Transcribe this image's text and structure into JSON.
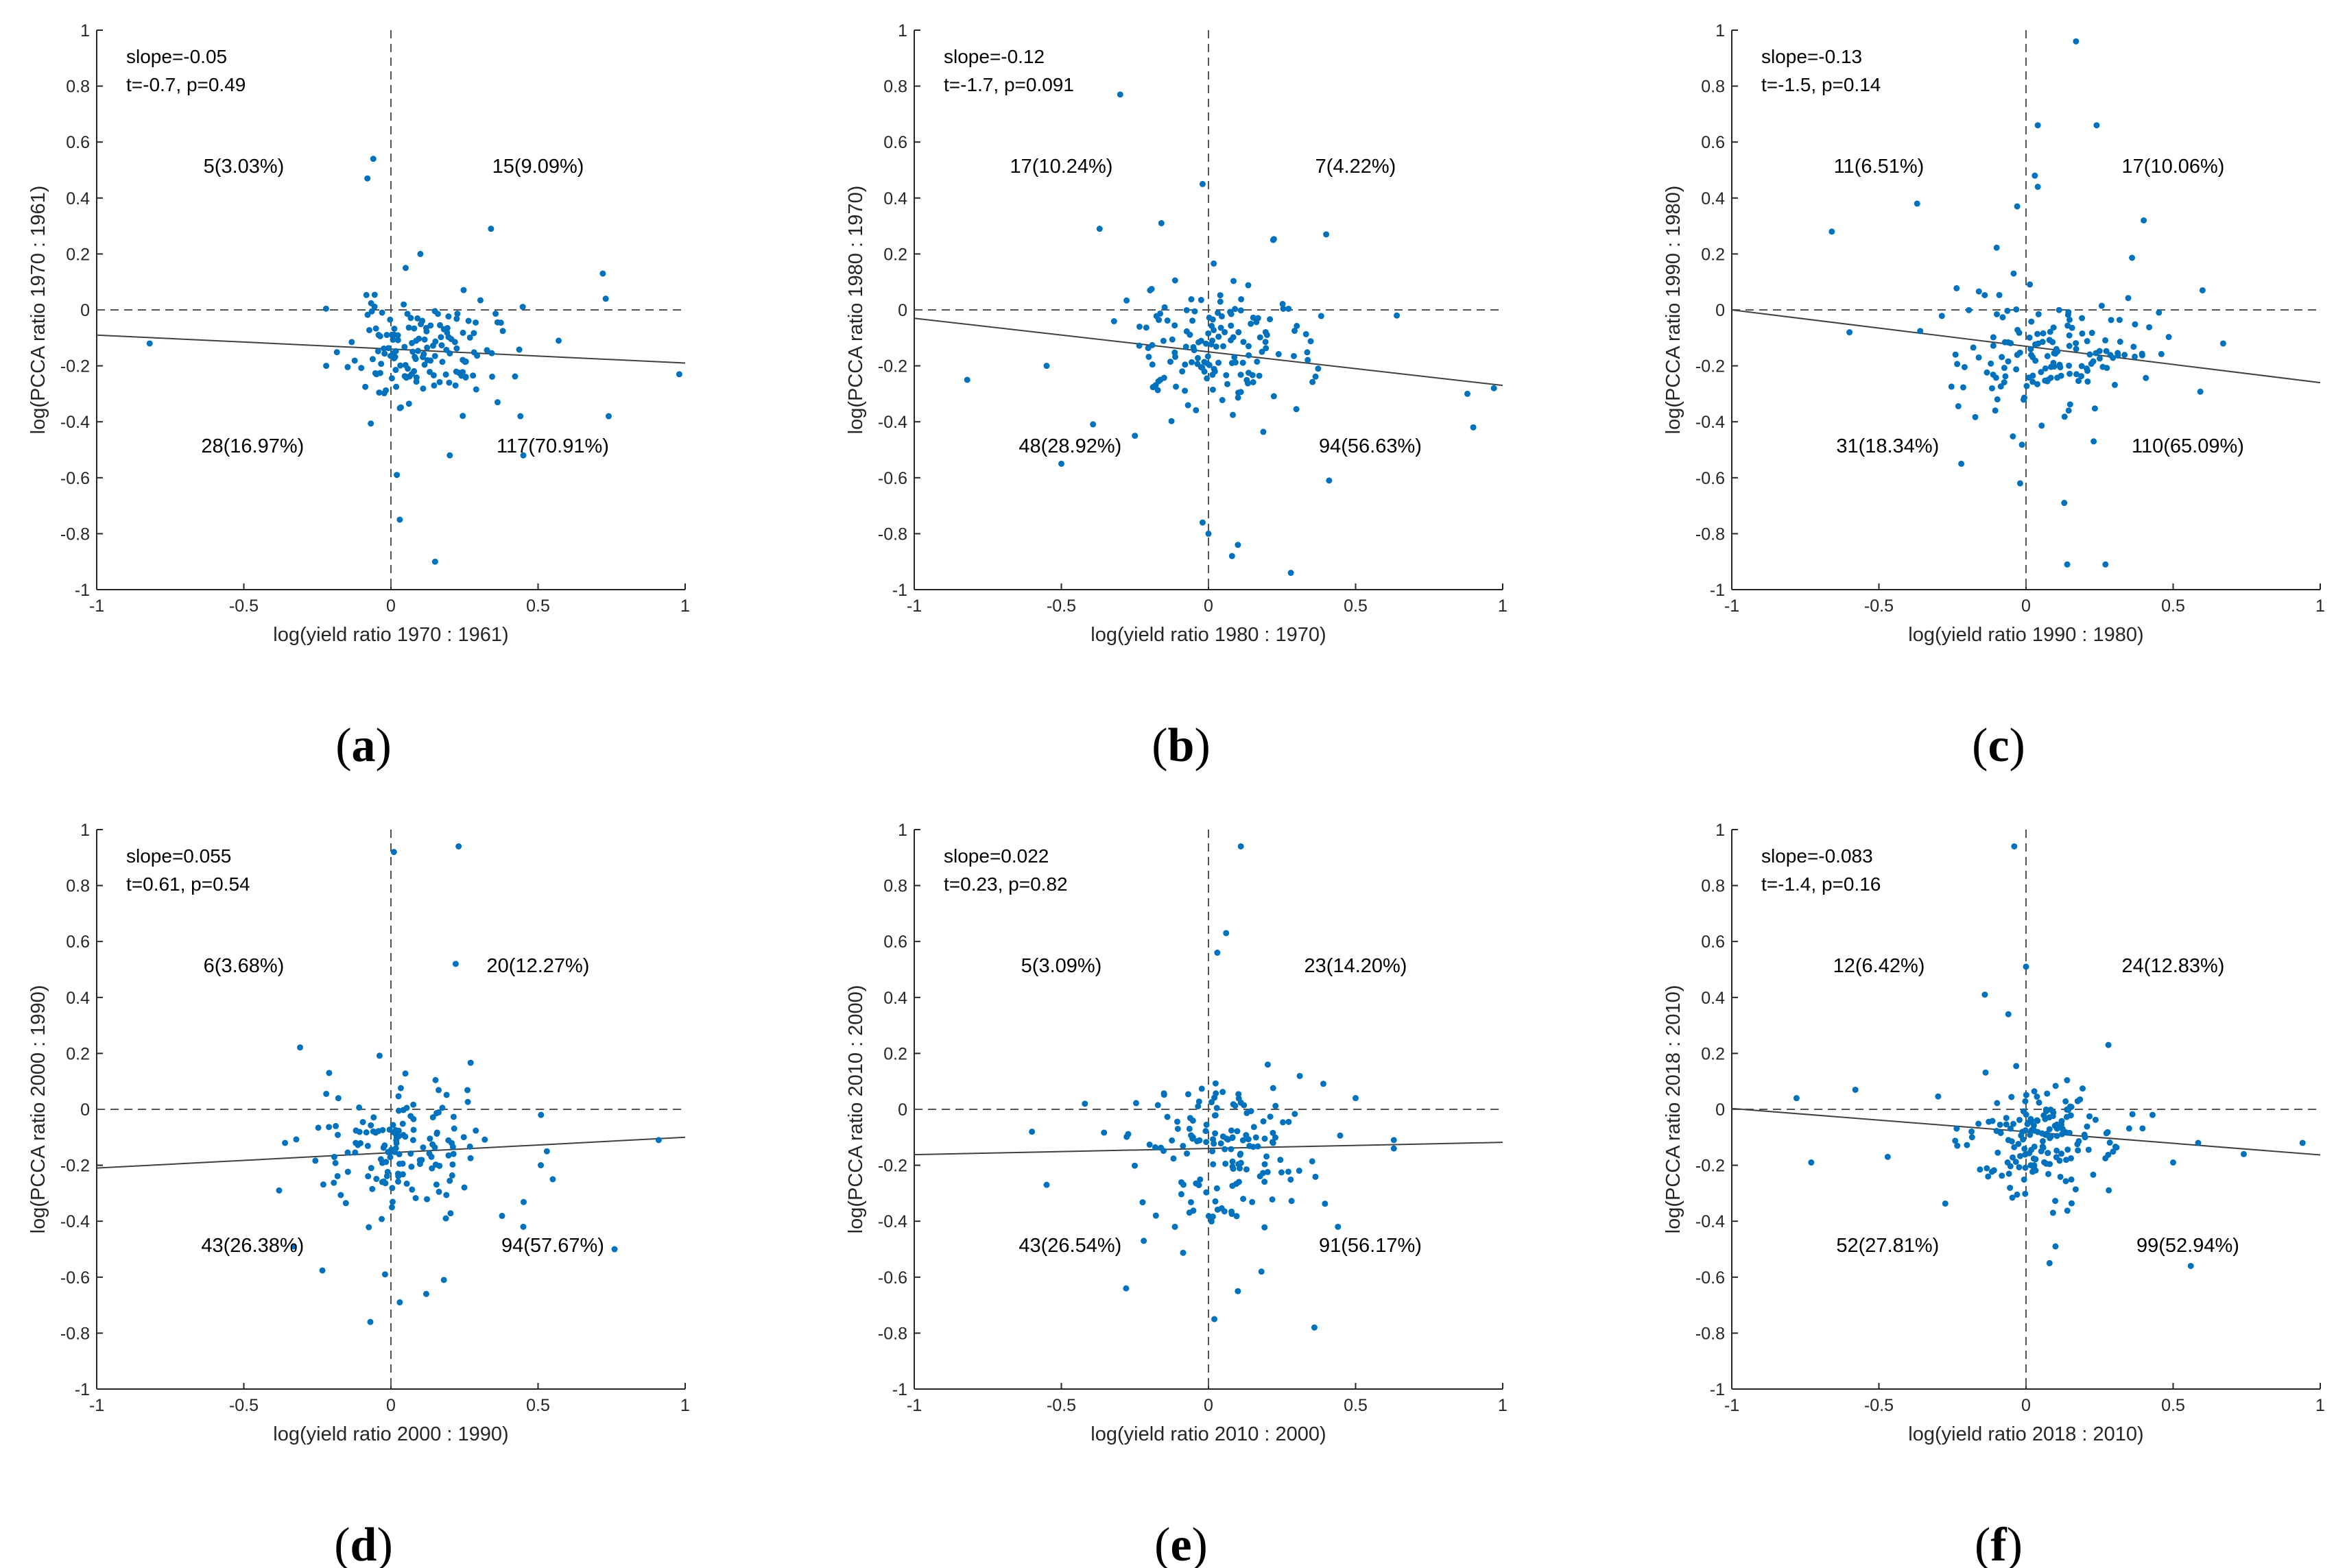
{
  "colors": {
    "points": "#0072bd",
    "axis": "#262626",
    "fit": "#404040",
    "ref": "#555555"
  },
  "chart_data": [
    {
      "type": "scatter",
      "panel_label": "a",
      "xlabel": "log(yield ratio 1970 : 1961)",
      "ylabel": "log(PCCA ratio 1970 : 1961)",
      "xlim": [
        -1,
        1
      ],
      "ylim": [
        -1,
        1
      ],
      "x_ticks": [
        "-1",
        "-0.5",
        "0",
        "0.5",
        "1"
      ],
      "y_ticks": [
        "-1",
        "-0.8",
        "-0.6",
        "-0.4",
        "-0.2",
        "0",
        "0.2",
        "0.4",
        "0.6",
        "0.8",
        "1"
      ],
      "stats": [
        "slope=-0.05",
        "t=-0.7, p=0.49"
      ],
      "fit": {
        "slope": -0.05,
        "intercept": -0.14
      },
      "quadrant_labels": {
        "upper_left": "5(3.03%)",
        "upper_right": "15(9.09%)",
        "lower_left": "28(16.97%)",
        "lower_right": "117(70.91%)"
      },
      "outliers": [
        [
          -0.82,
          -0.12
        ],
        [
          -0.08,
          0.47
        ],
        [
          -0.06,
          0.54
        ],
        [
          0.02,
          -0.59
        ],
        [
          0.03,
          -0.75
        ],
        [
          0.15,
          -0.9
        ],
        [
          0.34,
          0.29
        ],
        [
          0.44,
          -0.38
        ],
        [
          0.57,
          -0.11
        ],
        [
          0.72,
          0.13
        ],
        [
          0.73,
          0.04
        ],
        [
          0.74,
          -0.38
        ],
        [
          0.98,
          -0.23
        ],
        [
          0.2,
          -0.52
        ],
        [
          -0.22,
          -0.2
        ],
        [
          0.05,
          0.15
        ],
        [
          0.1,
          0.2
        ],
        [
          0.45,
          -0.52
        ]
      ],
      "cluster": {
        "n": 147,
        "cx": 0.1,
        "cy": -0.15,
        "sx": 0.12,
        "sy": 0.09,
        "seed": 11
      }
    },
    {
      "type": "scatter",
      "panel_label": "b",
      "xlabel": "log(yield ratio 1980 : 1970)",
      "ylabel": "log(PCCA ratio 1980 : 1970)",
      "xlim": [
        -1,
        1
      ],
      "ylim": [
        -1,
        1
      ],
      "x_ticks": [
        "-1",
        "-0.5",
        "0",
        "0.5",
        "1"
      ],
      "y_ticks": [
        "-1",
        "-0.8",
        "-0.6",
        "-0.4",
        "-0.2",
        "0",
        "0.2",
        "0.4",
        "0.6",
        "0.8",
        "1"
      ],
      "stats": [
        "slope=-0.12",
        "t=-1.7, p=0.091"
      ],
      "fit": {
        "slope": -0.12,
        "intercept": -0.15
      },
      "quadrant_labels": {
        "upper_left": "17(10.24%)",
        "upper_right": "7(4.22%)",
        "lower_left": "48(28.92%)",
        "lower_right": "94(56.63%)"
      },
      "outliers": [
        [
          -0.82,
          -0.25
        ],
        [
          -0.55,
          -0.2
        ],
        [
          -0.5,
          -0.55
        ],
        [
          -0.37,
          0.29
        ],
        [
          -0.3,
          0.77
        ],
        [
          -0.16,
          0.31
        ],
        [
          -0.02,
          0.45
        ],
        [
          -0.02,
          -0.76
        ],
        [
          0.0,
          -0.8
        ],
        [
          0.08,
          -0.88
        ],
        [
          0.1,
          -0.84
        ],
        [
          0.28,
          -0.94
        ],
        [
          0.4,
          0.27
        ],
        [
          0.41,
          -0.61
        ],
        [
          0.64,
          -0.02
        ],
        [
          0.88,
          -0.3
        ],
        [
          0.9,
          -0.42
        ],
        [
          0.97,
          -0.28
        ],
        [
          -0.25,
          -0.45
        ],
        [
          0.22,
          0.25
        ]
      ],
      "cluster": {
        "n": 146,
        "cx": 0.02,
        "cy": -0.14,
        "sx": 0.16,
        "sy": 0.12,
        "seed": 23
      }
    },
    {
      "type": "scatter",
      "panel_label": "c",
      "xlabel": "log(yield ratio 1990 : 1980)",
      "ylabel": "log(PCCA ratio 1990 : 1980)",
      "xlim": [
        -1,
        1
      ],
      "ylim": [
        -1,
        1
      ],
      "x_ticks": [
        "-1",
        "-0.5",
        "0",
        "0.5",
        "1"
      ],
      "y_ticks": [
        "-1",
        "-0.8",
        "-0.6",
        "-0.4",
        "-0.2",
        "0",
        "0.2",
        "0.4",
        "0.6",
        "0.8",
        "1"
      ],
      "stats": [
        "slope=-0.13",
        "t=-1.5, p=0.14"
      ],
      "fit": {
        "slope": -0.13,
        "intercept": -0.13
      },
      "quadrant_labels": {
        "upper_left": "11(6.51%)",
        "upper_right": "17(10.06%)",
        "lower_left": "31(18.34%)",
        "lower_right": "110(65.09%)"
      },
      "outliers": [
        [
          -0.66,
          0.28
        ],
        [
          -0.37,
          0.38
        ],
        [
          -0.03,
          0.37
        ],
        [
          0.03,
          0.48
        ],
        [
          0.04,
          0.44
        ],
        [
          0.04,
          0.66
        ],
        [
          0.17,
          0.96
        ],
        [
          0.24,
          0.66
        ],
        [
          0.4,
          0.32
        ],
        [
          -0.02,
          -0.62
        ],
        [
          0.13,
          -0.69
        ],
        [
          0.14,
          -0.91
        ],
        [
          0.27,
          -0.91
        ],
        [
          0.6,
          0.07
        ],
        [
          0.67,
          -0.12
        ],
        [
          -0.6,
          -0.08
        ],
        [
          -0.22,
          -0.55
        ],
        [
          0.23,
          -0.47
        ]
      ],
      "cluster": {
        "n": 151,
        "cx": 0.1,
        "cy": -0.15,
        "sx": 0.17,
        "sy": 0.12,
        "seed": 37
      }
    },
    {
      "type": "scatter",
      "panel_label": "d",
      "xlabel": "log(yield ratio 2000 : 1990)",
      "ylabel": "log(PCCA ratio 2000 : 1990)",
      "xlim": [
        -1,
        1
      ],
      "ylim": [
        -1,
        1
      ],
      "x_ticks": [
        "-1",
        "-0.5",
        "0",
        "0.5",
        "1"
      ],
      "y_ticks": [
        "-1",
        "-0.8",
        "-0.6",
        "-0.4",
        "-0.2",
        "0",
        "0.2",
        "0.4",
        "0.6",
        "0.8",
        "1"
      ],
      "stats": [
        "slope=0.055",
        "t=0.61, p=0.54"
      ],
      "fit": {
        "slope": 0.055,
        "intercept": -0.155
      },
      "quadrant_labels": {
        "upper_left": "6(3.68%)",
        "upper_right": "20(12.27%)",
        "lower_left": "43(26.38%)",
        "lower_right": "94(57.67%)"
      },
      "outliers": [
        [
          0.01,
          0.92
        ],
        [
          0.23,
          0.94
        ],
        [
          0.22,
          0.52
        ],
        [
          -0.07,
          -0.76
        ],
        [
          -0.02,
          -0.59
        ],
        [
          0.03,
          -0.69
        ],
        [
          0.12,
          -0.66
        ],
        [
          0.18,
          -0.61
        ],
        [
          0.76,
          -0.5
        ],
        [
          0.91,
          -0.11
        ],
        [
          0.53,
          -0.15
        ],
        [
          0.55,
          -0.25
        ],
        [
          -0.38,
          -0.29
        ],
        [
          -0.33,
          -0.49
        ],
        [
          -0.36,
          -0.12
        ],
        [
          -0.21,
          0.13
        ],
        [
          0.45,
          -0.42
        ],
        [
          0.51,
          -0.02
        ]
      ],
      "cluster": {
        "n": 145,
        "cx": 0.05,
        "cy": -0.14,
        "sx": 0.14,
        "sy": 0.13,
        "seed": 41
      }
    },
    {
      "type": "scatter",
      "panel_label": "e",
      "xlabel": "log(yield ratio 2010 : 2000)",
      "ylabel": "log(PCCA ratio 2010 : 2000)",
      "xlim": [
        -1,
        1
      ],
      "ylim": [
        -1,
        1
      ],
      "x_ticks": [
        "-1",
        "-0.5",
        "0",
        "0.5",
        "1"
      ],
      "y_ticks": [
        "-1",
        "-0.8",
        "-0.6",
        "-0.4",
        "-0.2",
        "0",
        "0.2",
        "0.4",
        "0.6",
        "0.8",
        "1"
      ],
      "stats": [
        "slope=0.022",
        "t=0.23, p=0.82"
      ],
      "fit": {
        "slope": 0.022,
        "intercept": -0.14
      },
      "quadrant_labels": {
        "upper_left": "5(3.09%)",
        "upper_right": "23(14.20%)",
        "lower_left": "43(26.54%)",
        "lower_right": "91(56.17%)"
      },
      "outliers": [
        [
          0.11,
          0.94
        ],
        [
          0.06,
          0.63
        ],
        [
          0.03,
          0.56
        ],
        [
          -0.28,
          -0.64
        ],
        [
          -0.22,
          -0.47
        ],
        [
          -0.55,
          -0.27
        ],
        [
          -0.6,
          -0.08
        ],
        [
          0.02,
          -0.75
        ],
        [
          0.1,
          -0.65
        ],
        [
          0.36,
          -0.78
        ],
        [
          0.5,
          0.04
        ],
        [
          0.63,
          -0.11
        ],
        [
          0.63,
          -0.14
        ],
        [
          0.44,
          -0.42
        ],
        [
          0.18,
          -0.58
        ],
        [
          -0.42,
          0.02
        ]
      ],
      "cluster": {
        "n": 146,
        "cx": 0.05,
        "cy": -0.14,
        "sx": 0.15,
        "sy": 0.13,
        "seed": 53
      }
    },
    {
      "type": "scatter",
      "panel_label": "f",
      "xlabel": "log(yield ratio 2018 : 2010)",
      "ylabel": "log(PCCA ratio 2018 : 2010)",
      "xlim": [
        -1,
        1
      ],
      "ylim": [
        -1,
        1
      ],
      "x_ticks": [
        "-1",
        "-0.5",
        "0",
        "0.5",
        "1"
      ],
      "y_ticks": [
        "-1",
        "-0.8",
        "-0.6",
        "-0.4",
        "-0.2",
        "0",
        "0.2",
        "0.4",
        "0.6",
        "0.8",
        "1"
      ],
      "stats": [
        "slope=-0.083",
        "t=-1.4, p=0.16"
      ],
      "fit": {
        "slope": -0.083,
        "intercept": -0.08
      },
      "quadrant_labels": {
        "upper_left": "12(6.42%)",
        "upper_right": "24(12.83%)",
        "lower_left": "52(27.81%)",
        "lower_right": "99(52.94%)"
      },
      "outliers": [
        [
          -0.04,
          0.94
        ],
        [
          -0.78,
          0.04
        ],
        [
          -0.73,
          -0.19
        ],
        [
          -0.58,
          0.07
        ],
        [
          -0.47,
          -0.17
        ],
        [
          -0.14,
          0.41
        ],
        [
          0.0,
          0.51
        ],
        [
          0.1,
          -0.49
        ],
        [
          0.08,
          -0.55
        ],
        [
          0.56,
          -0.56
        ],
        [
          0.74,
          -0.16
        ],
        [
          0.94,
          -0.12
        ],
        [
          0.28,
          0.23
        ],
        [
          -0.06,
          0.34
        ],
        [
          0.43,
          -0.02
        ],
        [
          0.5,
          -0.19
        ]
      ],
      "cluster": {
        "n": 171,
        "cx": 0.05,
        "cy": -0.1,
        "sx": 0.13,
        "sy": 0.1,
        "seed": 67
      }
    }
  ]
}
